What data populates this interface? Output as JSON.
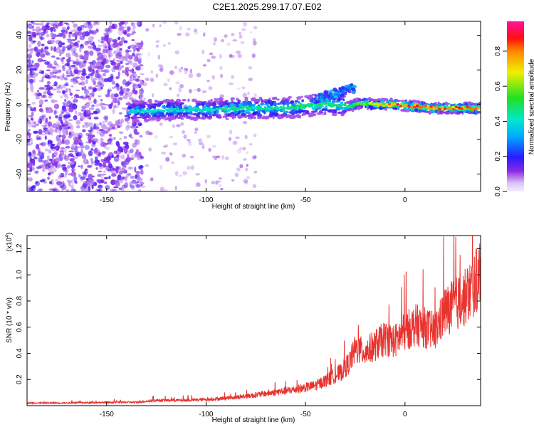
{
  "title": "C2E1.2025.299.17.07.E02",
  "chart_data": [
    {
      "type": "heatmap",
      "xlabel": "Height of straight line (km)",
      "ylabel": "Frequency (Hz)",
      "xlim": [
        -190,
        38
      ],
      "ylim": [
        -50,
        48
      ],
      "xticks": [
        -150,
        -100,
        -50,
        0
      ],
      "yticks": [
        -40,
        -20,
        0,
        20,
        40
      ],
      "colorbar": {
        "label": "Normalized spectral amplitude",
        "range": [
          0,
          0.97
        ],
        "ticks": [
          0.0,
          0.2,
          0.4,
          0.6,
          0.8
        ]
      },
      "ridge": {
        "x": [
          -140,
          -120,
          -100,
          -80,
          -60,
          -45,
          -35,
          -28,
          -22,
          -15,
          -5,
          5,
          15,
          25,
          38
        ],
        "freq": [
          -4,
          -3,
          -3,
          -2,
          -2,
          0,
          0,
          -1,
          1,
          0,
          0,
          -1,
          -2,
          -2,
          -2
        ],
        "amplitude": [
          0.4,
          0.45,
          0.45,
          0.5,
          0.5,
          0.55,
          0.5,
          0.55,
          0.6,
          0.7,
          0.9,
          0.9,
          0.85,
          0.9,
          0.9
        ]
      }
    },
    {
      "type": "line",
      "xlabel": "Height of straight line (km)",
      "ylabel": "SNR (10 * v/v)",
      "yscale_label": "(x10",
      "yscale_exp": "4",
      "yscale_close": ")",
      "xlim": [
        -190,
        38
      ],
      "ylim": [
        0,
        1.3
      ],
      "xticks": [
        -150,
        -100,
        -50,
        0
      ],
      "yticks": [
        0.2,
        0.4,
        0.6,
        0.8,
        1.0,
        1.2
      ],
      "color": "#e8332f",
      "series": [
        {
          "x": [
            -190,
            -170,
            -150,
            -135,
            -125,
            -110,
            -95,
            -80,
            -65,
            -55,
            -45,
            -38,
            -32,
            -28,
            -25,
            -20,
            -15,
            -10,
            -5,
            0,
            5,
            10,
            15,
            20,
            25,
            30,
            35,
            38
          ],
          "values": [
            0.02,
            0.02,
            0.025,
            0.025,
            0.04,
            0.04,
            0.05,
            0.07,
            0.1,
            0.12,
            0.15,
            0.2,
            0.25,
            0.32,
            0.42,
            0.4,
            0.45,
            0.5,
            0.48,
            0.55,
            0.6,
            0.58,
            0.55,
            0.7,
            0.75,
            0.8,
            0.9,
            1.0
          ]
        }
      ]
    }
  ]
}
